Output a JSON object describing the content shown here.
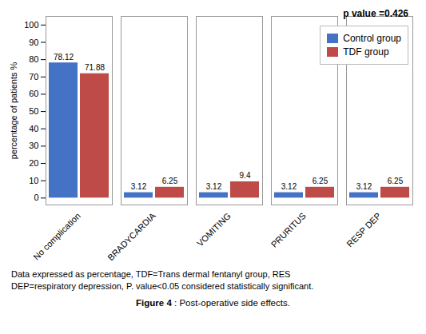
{
  "chart_data": {
    "type": "bar",
    "categories": [
      "No complication",
      "BRADYCARDIA",
      "VOMITING",
      "PRURITUS",
      "RESP DEP"
    ],
    "series": [
      {
        "name": "Control group",
        "color": "#4472C4",
        "values": [
          78.12,
          3.12,
          3.12,
          3.12,
          3.12
        ]
      },
      {
        "name": "TDF group",
        "color": "#BE4B48",
        "values": [
          71.88,
          6.25,
          9.4,
          6.25,
          6.25
        ]
      }
    ],
    "ylabel": "percentage of patients %",
    "ylim": [
      -4,
      105
    ],
    "yticks": [
      0,
      10,
      20,
      30,
      40,
      50,
      60,
      70,
      80,
      90,
      100
    ],
    "grid": false,
    "data_labels": true,
    "legend": "upper right",
    "annotations": [
      "p value =0.426"
    ],
    "caption": [
      "Data expressed as percentage, TDF=Trans dermal fentanyl group, RES",
      "DEP=respiratory depression, P. value<0.05 considered statistically significant."
    ],
    "figure_caption": [
      "Figure 4",
      ": Post-operative side effects."
    ]
  }
}
